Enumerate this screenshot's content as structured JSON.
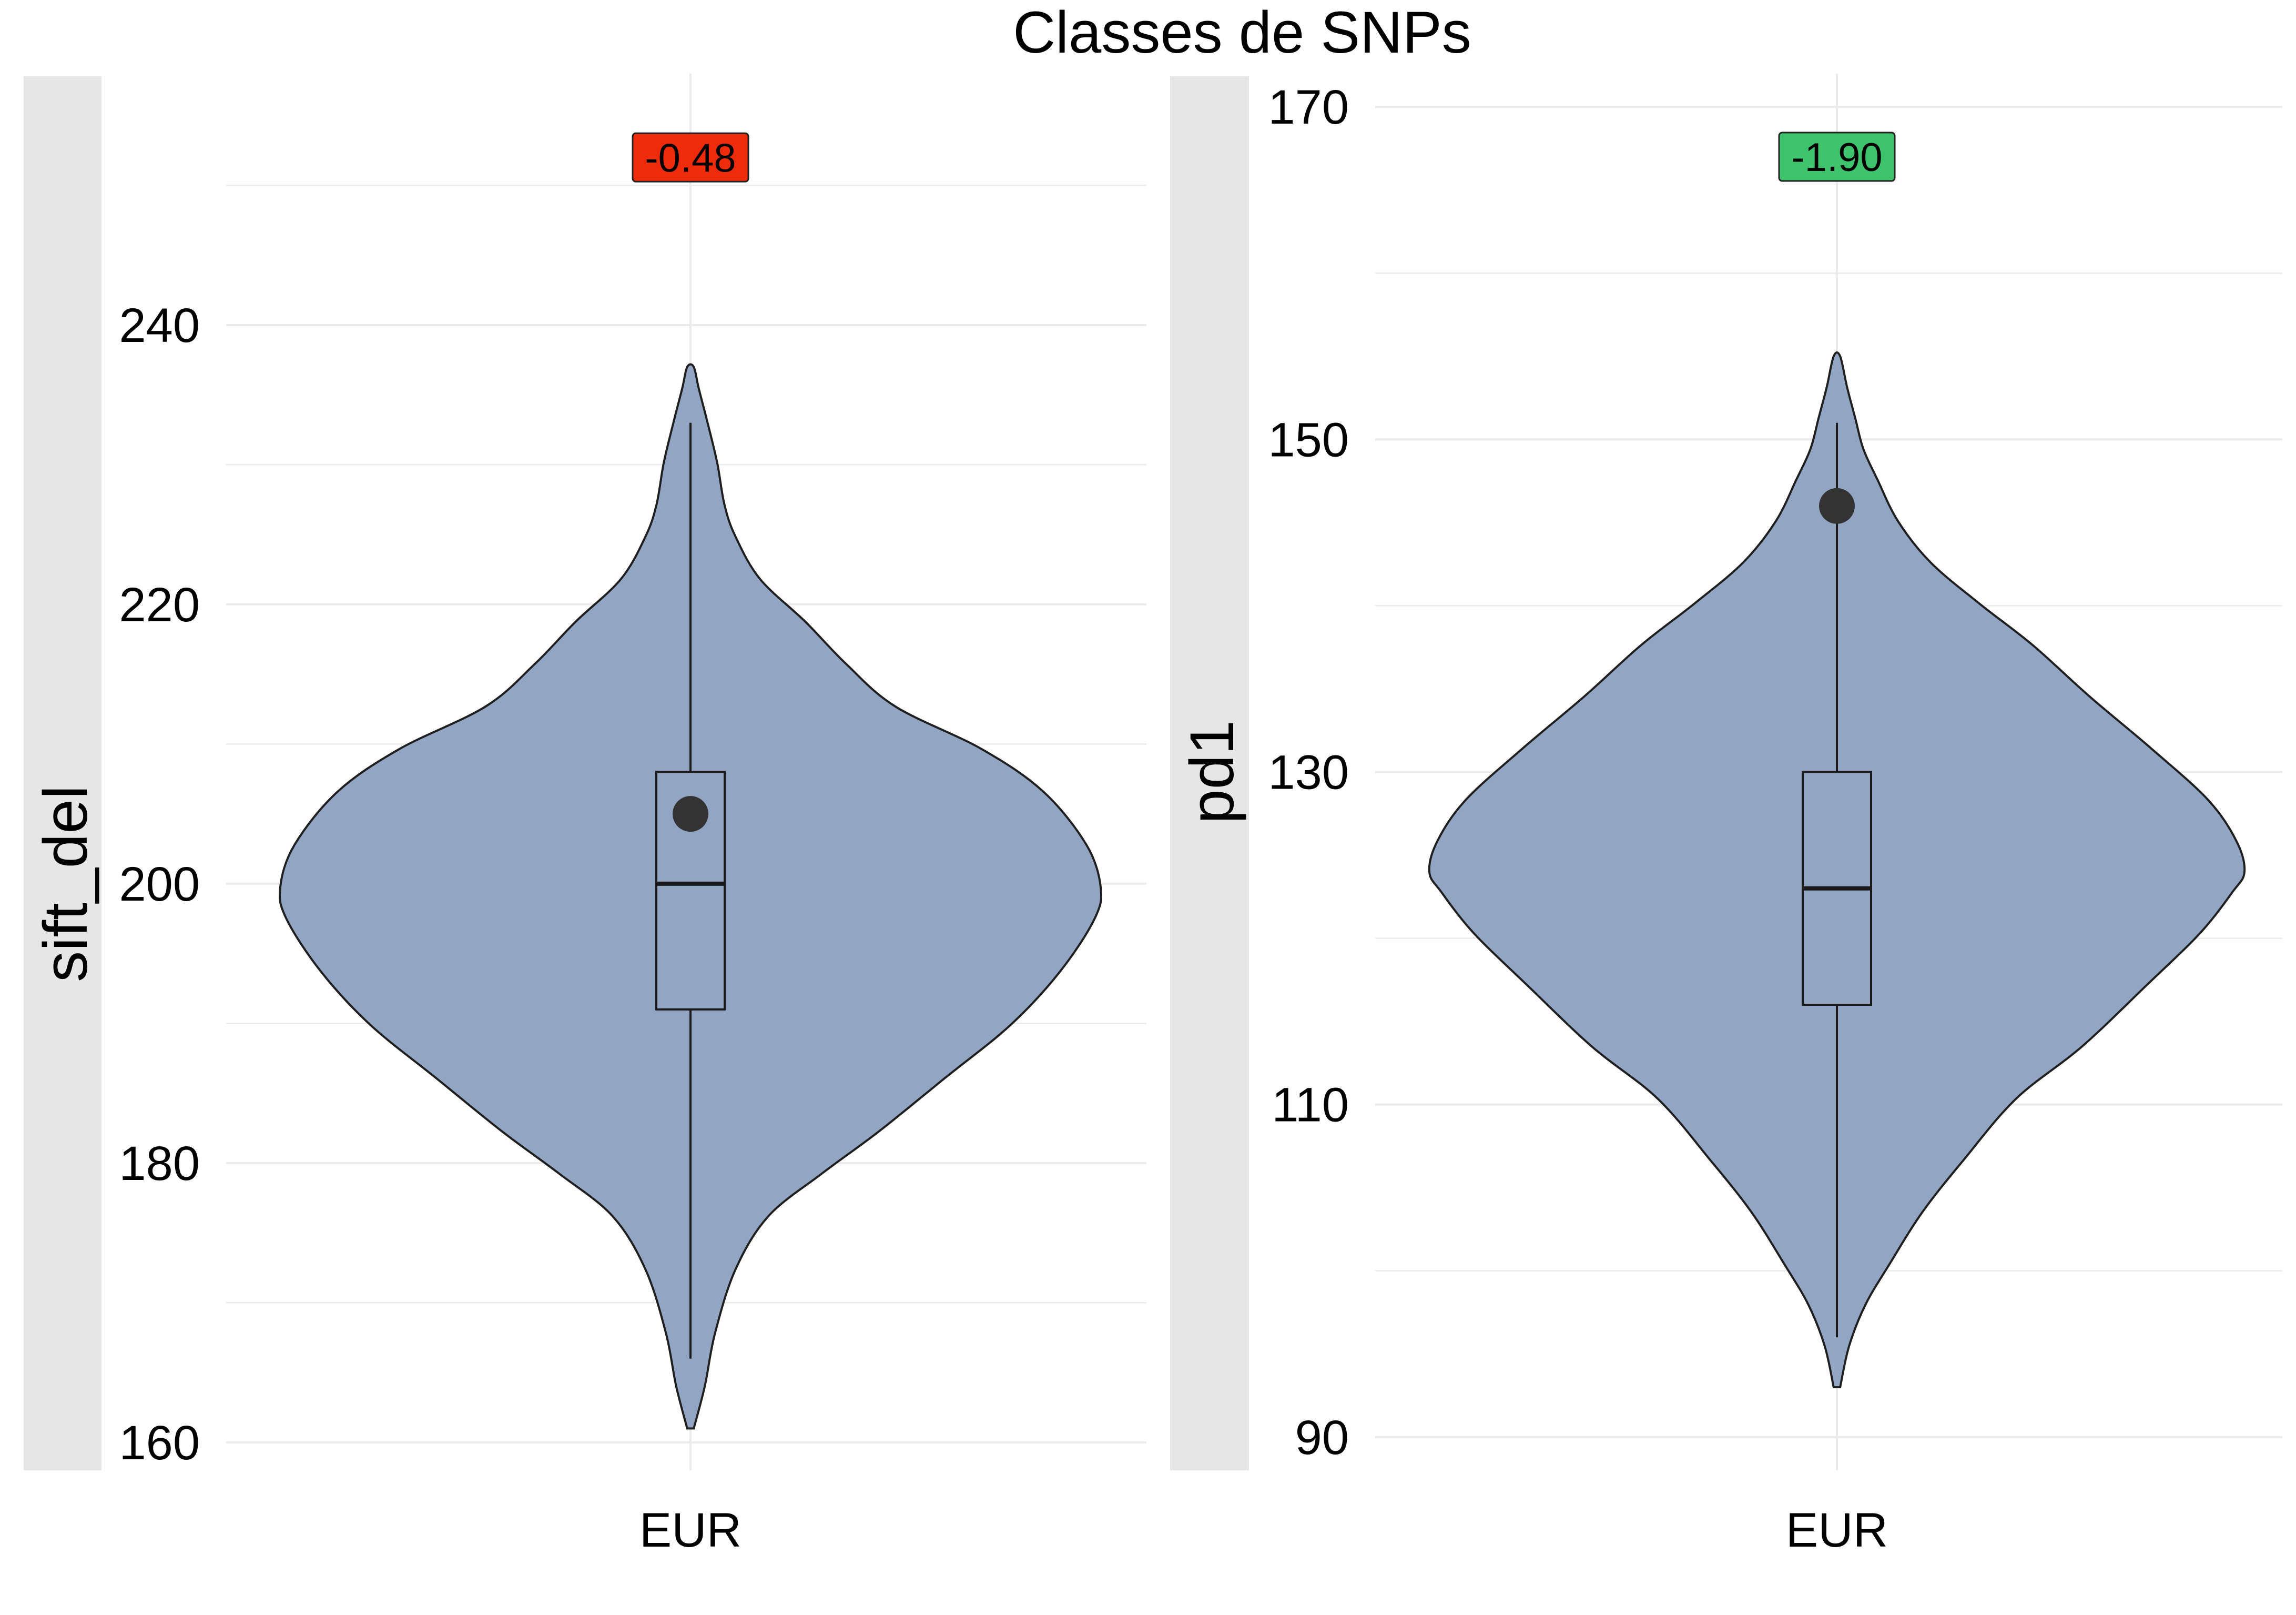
{
  "title": "Classes de SNPs",
  "colors": {
    "violin_fill": "#92a6c3",
    "violin_stroke": "#1f1f1f",
    "strip": "#e6e6e6",
    "grid": "#ebebeb",
    "mean_point": "#333333",
    "label_red": "#ee2c0c",
    "label_green": "#3ec46d"
  },
  "chart_data": [
    {
      "type": "violin",
      "ylabel": "sift_del",
      "categories": [
        "EUR"
      ],
      "ylim": [
        158,
        258
      ],
      "yticks": [
        160,
        180,
        200,
        220,
        240
      ],
      "box": {
        "q1": 191,
        "median": 200,
        "q3": 208,
        "whisker_low": 166,
        "whisker_high": 233
      },
      "mean": 205,
      "range": [
        161,
        237
      ],
      "annotation": {
        "text": "-0.48",
        "y": 252,
        "color": "#ee2c0c"
      }
    },
    {
      "type": "violin",
      "ylabel": "pd1",
      "categories": [
        "EUR"
      ],
      "ylim": [
        88,
        172
      ],
      "yticks": [
        90,
        110,
        130,
        150,
        170
      ],
      "box": {
        "q1": 116,
        "median": 123,
        "q3": 130,
        "whisker_low": 96,
        "whisker_high": 151
      },
      "mean": 146,
      "range": [
        93,
        155
      ],
      "annotation": {
        "text": "-1.90",
        "y": 167,
        "color": "#3ec46d"
      }
    }
  ]
}
